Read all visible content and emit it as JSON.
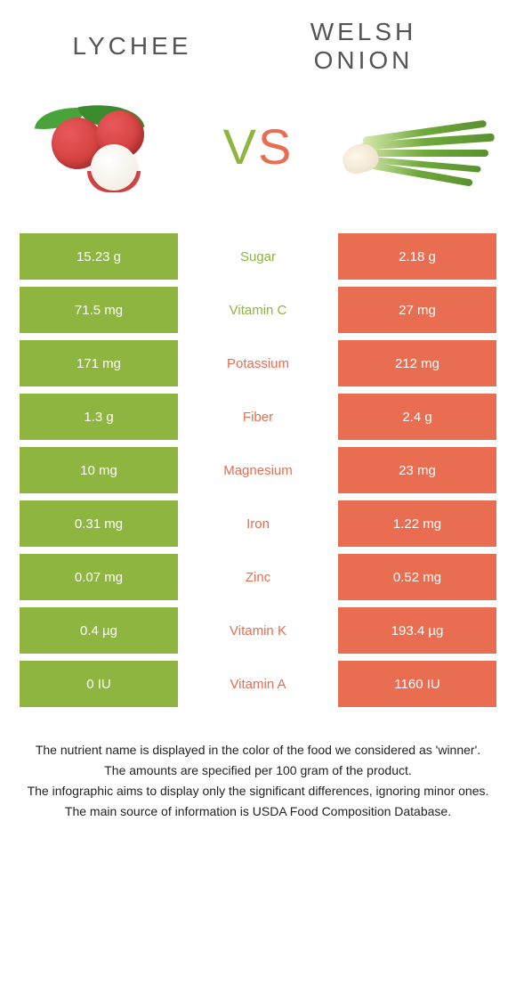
{
  "colors": {
    "left": "#8eb53f",
    "right": "#e96d50",
    "vs_left": "#8eb53f",
    "vs_right": "#e96d50"
  },
  "header": {
    "left_title": "LYCHEE",
    "right_title": "WELSH ONION"
  },
  "vs": {
    "v": "V",
    "s": "S"
  },
  "rows": [
    {
      "left": "15.23 g",
      "label": "Sugar",
      "right": "2.18 g",
      "winner": "left"
    },
    {
      "left": "71.5 mg",
      "label": "Vitamin C",
      "right": "27 mg",
      "winner": "left"
    },
    {
      "left": "171 mg",
      "label": "Potassium",
      "right": "212 mg",
      "winner": "right"
    },
    {
      "left": "1.3 g",
      "label": "Fiber",
      "right": "2.4 g",
      "winner": "right"
    },
    {
      "left": "10 mg",
      "label": "Magnesium",
      "right": "23 mg",
      "winner": "right"
    },
    {
      "left": "0.31 mg",
      "label": "Iron",
      "right": "1.22 mg",
      "winner": "right"
    },
    {
      "left": "0.07 mg",
      "label": "Zinc",
      "right": "0.52 mg",
      "winner": "right"
    },
    {
      "left": "0.4 µg",
      "label": "Vitamin K",
      "right": "193.4 µg",
      "winner": "right"
    },
    {
      "left": "0 IU",
      "label": "Vitamin A",
      "right": "1160 IU",
      "winner": "right"
    }
  ],
  "footnotes": [
    "The nutrient name is displayed in the color of the food we considered as 'winner'.",
    "The amounts are specified per 100 gram of the product.",
    "The infographic aims to display only the significant differences, ignoring minor ones.",
    "The main source of information is USDA Food Composition Database."
  ]
}
